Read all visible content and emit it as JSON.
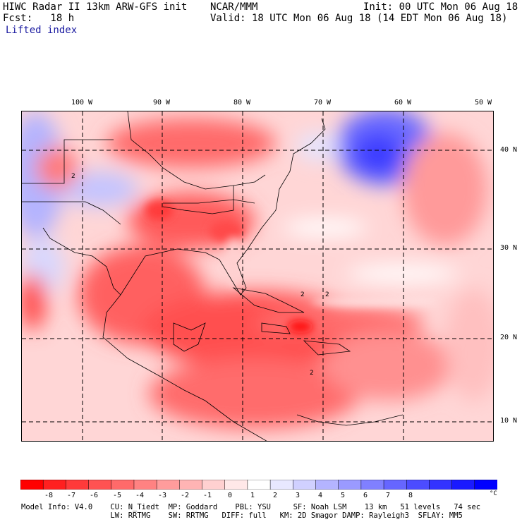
{
  "header": {
    "title": "HIWC Radar II 13km ARW-GFS init",
    "org": "NCAR/MMM",
    "init": "Init: 00 UTC Mon 06 Aug 18",
    "fcst": "Fcst:   18 h",
    "valid": "Valid: 18 UTC Mon 06 Aug 18 (14 EDT Mon 06 Aug 18)",
    "field": "Lifted index"
  },
  "map": {
    "lon_labels": [
      "100 W",
      "90 W",
      "80 W",
      "70 W",
      "60 W",
      "50 W"
    ],
    "lat_labels": [
      "40 N",
      "30 N",
      "20 N",
      "10 N"
    ],
    "contour_label": "2"
  },
  "colorbar": {
    "labels": [
      "-8",
      "-7",
      "-6",
      "-5",
      "-4",
      "-3",
      "-2",
      "-1",
      "0",
      "1",
      "2",
      "3",
      "4",
      "5",
      "6",
      "7",
      "8"
    ],
    "unit": "°C",
    "colors": [
      "#ff0000",
      "#ff2020",
      "#ff3a3a",
      "#ff5252",
      "#ff6a6a",
      "#ff8282",
      "#ff9c9c",
      "#ffb4b4",
      "#ffd0d0",
      "#ffe8e8",
      "#ffffff",
      "#e8e8ff",
      "#d0d0ff",
      "#b4b4ff",
      "#9a9aff",
      "#8080ff",
      "#6666ff",
      "#4c4cff",
      "#3333ff",
      "#1a1aff",
      "#0000ff"
    ]
  },
  "footer": {
    "line1": "Model Info: V4.0    CU: N_Tiedt  MP: Goddard    PBL: YSU     SF: Noah LSM    13 km   51 levels   74 sec",
    "line2": "                    LW: RRTMG    SW: RRTMG   DIFF: full   KM: 2D Smagor DAMP: Rayleigh3  SFLAY: MM5"
  }
}
